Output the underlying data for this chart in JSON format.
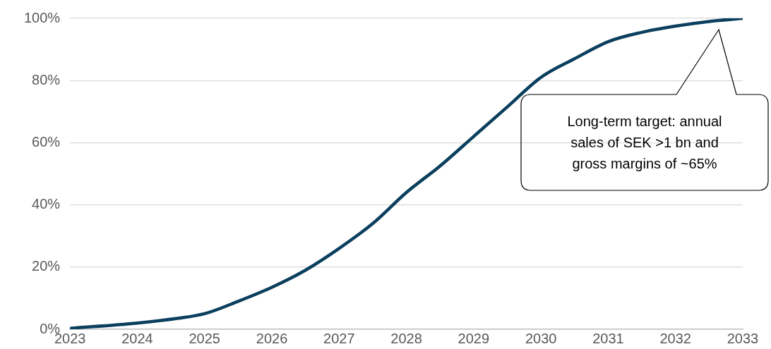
{
  "chart_data": {
    "type": "line",
    "x": [
      2023,
      2024,
      2024.6,
      2025,
      2025.5,
      2026,
      2026.5,
      2027,
      2027.5,
      2028,
      2028.5,
      2029,
      2029.5,
      2030,
      2030.5,
      2031,
      2031.5,
      2032,
      2032.5,
      2033
    ],
    "series": [
      {
        "color": "#0b3f5e",
        "values": [
          0.3,
          2,
          3.5,
          5,
          9,
          13.5,
          19,
          26,
          34,
          44,
          52.5,
          62,
          71.5,
          81,
          87,
          92.5,
          95.5,
          97.5,
          99,
          100
        ]
      }
    ],
    "xlim": [
      2023,
      2033
    ],
    "xticks": [
      2023,
      2024,
      2025,
      2026,
      2027,
      2028,
      2029,
      2030,
      2031,
      2032,
      2033
    ],
    "ylim": [
      0,
      100
    ],
    "yticks": [
      {
        "value": 0,
        "label": "0%"
      },
      {
        "value": 20,
        "label": "20%"
      },
      {
        "value": 40,
        "label": "40%"
      },
      {
        "value": 60,
        "label": "60%"
      },
      {
        "value": 80,
        "label": "80%"
      },
      {
        "value": 100,
        "label": "100%"
      }
    ],
    "grid": "y",
    "legend": false,
    "marker": "none",
    "line_style": "solid",
    "annotations": [
      "Long-term target: annual sales of SEK >1 bn and gross margins of ~65%"
    ]
  }
}
